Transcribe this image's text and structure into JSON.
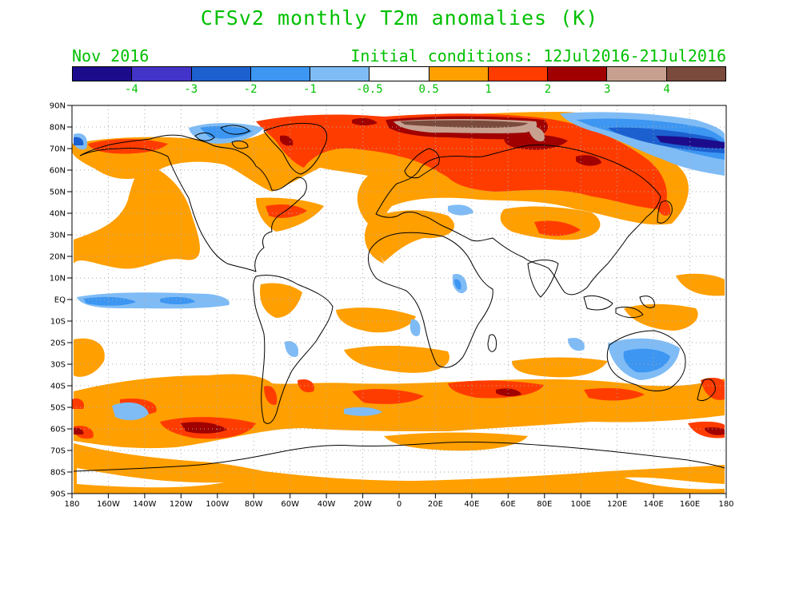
{
  "title": "CFSv2 monthly T2m anomalies (K)",
  "month": "Nov 2016",
  "initial_conditions": "Initial conditions: 12Jul2016-21Jul2016",
  "colors": {
    "text": "#00c000",
    "neutral": "#ffffff",
    "coastline": "#000000",
    "grid": "#aaaaaa"
  },
  "colorbar": {
    "swatches": [
      "#1c0c8c",
      "#4234c8",
      "#1c60d0",
      "#3c96f2",
      "#7fbcf6",
      "#ffffff",
      "#ff9f00",
      "#ff3c00",
      "#a00000",
      "#c8a090",
      "#7a4a3c"
    ],
    "labels": [
      "-4",
      "-3",
      "-2",
      "-1",
      "-0.5",
      "0.5",
      "1",
      "2",
      "3",
      "4"
    ]
  },
  "axes": {
    "y_labels": [
      "90N",
      "80N",
      "70N",
      "60N",
      "50N",
      "40N",
      "30N",
      "20N",
      "10N",
      "EQ",
      "10S",
      "20S",
      "30S",
      "40S",
      "50S",
      "60S",
      "70S",
      "80S",
      "90S"
    ],
    "x_labels": [
      "180",
      "160W",
      "140W",
      "120W",
      "100W",
      "80W",
      "60W",
      "40W",
      "20W",
      "0",
      "20E",
      "40E",
      "60E",
      "80E",
      "100E",
      "120E",
      "140E",
      "160E",
      "180"
    ]
  }
}
